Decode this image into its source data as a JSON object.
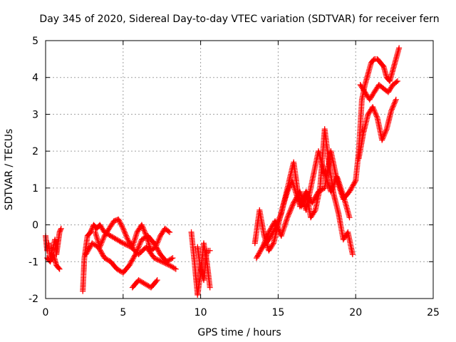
{
  "chart_data": {
    "type": "scatter",
    "title": "Day 345 of 2020, Sidereal Day-to-day VTEC variation (SDTVAR) for receiver fern",
    "xlabel": "GPS time / hours",
    "ylabel": "SDTVAR / TECUs",
    "xlim": [
      0,
      25
    ],
    "ylim": [
      -2,
      5
    ],
    "x_ticks": [
      "0",
      "5",
      "10",
      "15",
      "20",
      "25"
    ],
    "y_ticks": [
      "-2",
      "-1",
      "0",
      "1",
      "2",
      "3",
      "4",
      "5"
    ],
    "grid": true,
    "marker": "+",
    "color": "#ff0000",
    "series": [
      {
        "name": "SDTVAR",
        "segments": [
          {
            "x": [
              0.0,
              0.1,
              0.2,
              0.3,
              0.4,
              0.5,
              0.6,
              0.7,
              0.8,
              0.9,
              1.0
            ],
            "y": [
              -0.3,
              -0.7,
              -0.5,
              -0.9,
              -0.7,
              -0.6,
              -0.4,
              -0.8,
              -0.5,
              -0.2,
              -0.1
            ]
          },
          {
            "x": [
              0.1,
              0.3,
              0.5,
              0.7,
              0.9
            ],
            "y": [
              -0.9,
              -1.0,
              -0.8,
              -1.1,
              -1.2
            ]
          },
          {
            "x": [
              2.4,
              2.5,
              2.7,
              2.9,
              3.1,
              3.3,
              3.5,
              3.8,
              4.2,
              4.6,
              5.0,
              5.5,
              6.0,
              6.5,
              7.0,
              7.5,
              8.0,
              8.4
            ],
            "y": [
              -1.8,
              -0.9,
              -0.3,
              -0.2,
              0.0,
              -0.1,
              0.0,
              -0.2,
              -0.3,
              -0.4,
              -0.5,
              -0.6,
              -0.8,
              -0.6,
              -0.9,
              -1.0,
              -1.1,
              -1.2
            ]
          },
          {
            "x": [
              2.6,
              3.0,
              3.4,
              3.8,
              4.2,
              4.6,
              5.0,
              5.4,
              5.8,
              6.2,
              6.6,
              7.0,
              7.4,
              7.8,
              8.2
            ],
            "y": [
              -0.8,
              -0.5,
              -0.6,
              -0.9,
              -1.0,
              -1.2,
              -1.3,
              -1.1,
              -0.8,
              -0.4,
              -0.3,
              -0.5,
              -0.8,
              -1.0,
              -0.9
            ]
          },
          {
            "x": [
              3.2,
              3.5,
              3.8,
              4.1,
              4.4,
              4.7,
              5.0,
              5.3,
              5.6,
              5.9,
              6.2,
              6.5,
              6.8,
              7.1,
              7.4,
              7.7,
              8.0
            ],
            "y": [
              -0.2,
              -0.6,
              -0.3,
              -0.1,
              0.1,
              0.15,
              -0.1,
              -0.4,
              -0.6,
              -0.2,
              0.0,
              -0.3,
              -0.7,
              -0.6,
              -0.3,
              -0.1,
              -0.2
            ]
          },
          {
            "x": [
              5.6,
              6.0,
              6.4,
              6.8,
              7.2
            ],
            "y": [
              -1.7,
              -1.5,
              -1.6,
              -1.7,
              -1.5
            ]
          },
          {
            "x": [
              9.4,
              9.6,
              9.8,
              10.0,
              10.2,
              10.4,
              10.6
            ],
            "y": [
              -0.2,
              -1.0,
              -1.9,
              -1.3,
              -0.5,
              -1.0,
              -1.7
            ]
          },
          {
            "x": [
              9.8,
              10.0,
              10.2,
              10.4,
              10.6
            ],
            "y": [
              -0.6,
              -1.2,
              -1.5,
              -0.7,
              -0.7
            ]
          },
          {
            "x": [
              13.5,
              13.8,
              14.1,
              14.4,
              14.7,
              15.0,
              15.3,
              15.6,
              15.9,
              16.2,
              16.5,
              16.8,
              17.1,
              17.4,
              17.7,
              18.0,
              18.3,
              18.6,
              18.9,
              19.2,
              19.5,
              19.8
            ],
            "y": [
              -0.5,
              0.4,
              -0.3,
              -0.7,
              -0.5,
              0.0,
              0.5,
              0.9,
              1.2,
              0.8,
              0.5,
              0.9,
              0.2,
              0.4,
              1.0,
              2.6,
              1.6,
              0.8,
              0.3,
              -0.4,
              -0.2,
              -0.8
            ]
          },
          {
            "x": [
              13.6,
              14.0,
              14.4,
              14.8,
              15.2,
              15.6,
              16.0,
              16.4,
              16.8,
              17.2,
              17.6,
              18.0,
              18.4,
              18.8,
              19.2,
              19.6,
              20.0
            ],
            "y": [
              -0.9,
              -0.6,
              -0.4,
              -0.1,
              0.3,
              1.0,
              1.7,
              0.5,
              0.9,
              0.6,
              0.9,
              1.0,
              2.0,
              1.2,
              0.7,
              0.9,
              1.2
            ]
          },
          {
            "x": [
              14.0,
              14.4,
              14.8,
              15.2,
              15.6,
              16.0,
              16.4,
              16.8,
              17.2,
              17.6,
              18.0,
              18.4,
              18.8,
              19.2,
              19.6
            ],
            "y": [
              -0.6,
              -0.2,
              0.1,
              -0.3,
              0.2,
              0.6,
              0.9,
              0.4,
              1.2,
              2.0,
              1.4,
              0.9,
              1.3,
              0.8,
              0.2
            ]
          },
          {
            "x": [
              20.0,
              20.2,
              20.4,
              20.6,
              20.8,
              21.0,
              21.2,
              21.4,
              21.6,
              21.8,
              22.0,
              22.2,
              22.4,
              22.6,
              22.8
            ],
            "y": [
              1.2,
              2.0,
              3.4,
              3.8,
              4.1,
              4.4,
              4.5,
              4.5,
              4.4,
              4.3,
              4.0,
              3.9,
              4.2,
              4.5,
              4.8
            ]
          },
          {
            "x": [
              20.3,
              20.6,
              20.9,
              21.2,
              21.5,
              21.8,
              22.1,
              22.4,
              22.7
            ],
            "y": [
              3.8,
              3.6,
              3.4,
              3.6,
              3.8,
              3.7,
              3.6,
              3.8,
              3.9
            ]
          },
          {
            "x": [
              20.2,
              20.5,
              20.8,
              21.1,
              21.4,
              21.7,
              22.0,
              22.3,
              22.6
            ],
            "y": [
              1.8,
              2.5,
              3.0,
              3.2,
              2.9,
              2.3,
              2.6,
              3.1,
              3.4
            ]
          }
        ]
      }
    ]
  }
}
